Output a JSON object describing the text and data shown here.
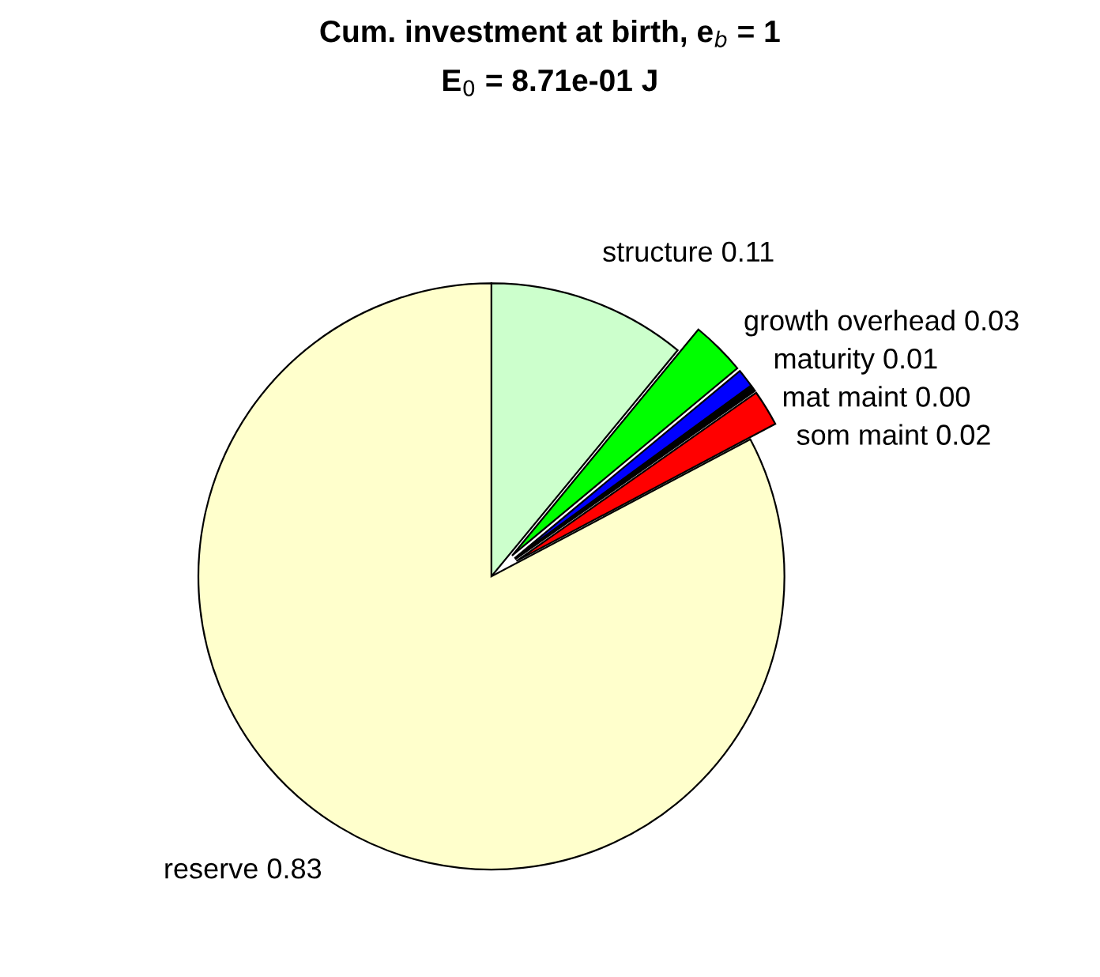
{
  "chart_data": {
    "type": "pie",
    "title": "Cum. investment at birth, e$_{b}$ = 1",
    "subtitle": "E$_{0}$ = 8.71e-01 J",
    "categories": [
      "structure",
      "growth overhead",
      "maturity",
      "mat maint",
      "som maint",
      "reserve"
    ],
    "values": [
      0.11,
      0.03,
      0.01,
      0.003,
      0.02,
      0.83
    ],
    "value_labels": [
      "0.11",
      "0.03",
      "0.01",
      "0.00",
      "0.02",
      "0.83"
    ],
    "colors": [
      "#ccffcc",
      "#00ff00",
      "#0000ff",
      "#000000",
      "#ff0000",
      "#ffffcc"
    ]
  }
}
